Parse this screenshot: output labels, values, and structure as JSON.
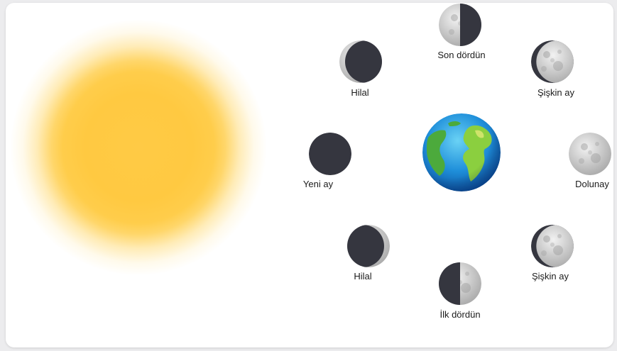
{
  "phases": {
    "top": "Son dördün",
    "top_left": "Hilal",
    "top_right": "Şişkin ay",
    "left": "Yeni ay",
    "right": "Dolunay",
    "bottom_left": "Hilal",
    "bottom_right": "Şişkin ay",
    "bottom": "İlk dördün"
  },
  "colors": {
    "sun": "#ffca45",
    "moon_dark": "#35363f",
    "moon_light": "#d6d6d6",
    "ocean": "#1e88d8",
    "land": "#7cc23c"
  }
}
